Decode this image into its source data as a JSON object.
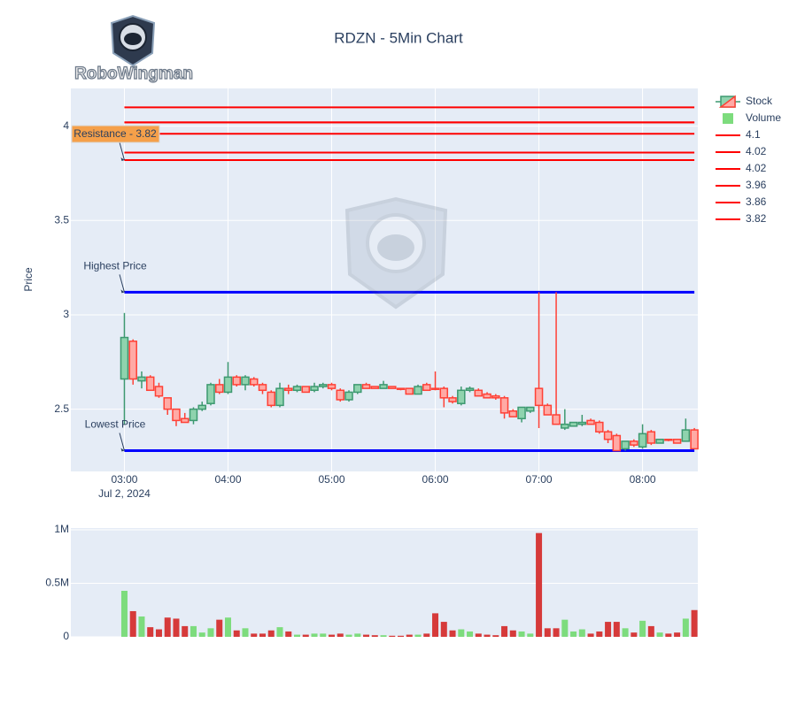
{
  "logo": {
    "text": "RoboWingman"
  },
  "chart_data": [
    {
      "type": "candlestick",
      "name": "Stock",
      "title": "RDZN - 5Min Chart",
      "y_label": "Price",
      "x_date_label": "Jul 2, 2024",
      "x": [
        "2024-07-02 03:00",
        "2024-07-02 03:05",
        "2024-07-02 03:10",
        "2024-07-02 03:15",
        "2024-07-02 03:20",
        "2024-07-02 03:25",
        "2024-07-02 03:30",
        "2024-07-02 03:35",
        "2024-07-02 03:40",
        "2024-07-02 03:45",
        "2024-07-02 03:50",
        "2024-07-02 03:55",
        "2024-07-02 04:00",
        "2024-07-02 04:05",
        "2024-07-02 04:10",
        "2024-07-02 04:15",
        "2024-07-02 04:20",
        "2024-07-02 04:25",
        "2024-07-02 04:30",
        "2024-07-02 04:35",
        "2024-07-02 04:40",
        "2024-07-02 04:45",
        "2024-07-02 04:50",
        "2024-07-02 04:55",
        "2024-07-02 05:00",
        "2024-07-02 05:05",
        "2024-07-02 05:10",
        "2024-07-02 05:15",
        "2024-07-02 05:20",
        "2024-07-02 05:25",
        "2024-07-02 05:30",
        "2024-07-02 05:35",
        "2024-07-02 05:40",
        "2024-07-02 05:45",
        "2024-07-02 05:50",
        "2024-07-02 05:55",
        "2024-07-02 06:00",
        "2024-07-02 06:05",
        "2024-07-02 06:10",
        "2024-07-02 06:15",
        "2024-07-02 06:20",
        "2024-07-02 06:25",
        "2024-07-02 06:30",
        "2024-07-02 06:35",
        "2024-07-02 06:40",
        "2024-07-02 06:45",
        "2024-07-02 06:50",
        "2024-07-02 06:55",
        "2024-07-02 07:00",
        "2024-07-02 07:05",
        "2024-07-02 07:10",
        "2024-07-02 07:15",
        "2024-07-02 07:20",
        "2024-07-02 07:25",
        "2024-07-02 07:30",
        "2024-07-02 07:35",
        "2024-07-02 07:40",
        "2024-07-02 07:45",
        "2024-07-02 07:50",
        "2024-07-02 07:55",
        "2024-07-02 08:00",
        "2024-07-02 08:05",
        "2024-07-02 08:10",
        "2024-07-02 08:15",
        "2024-07-02 08:20",
        "2024-07-02 08:25",
        "2024-07-02 08:30"
      ],
      "open": [
        2.66,
        2.86,
        2.65,
        2.67,
        2.62,
        2.56,
        2.5,
        2.45,
        2.44,
        2.5,
        2.53,
        2.63,
        2.59,
        2.67,
        2.63,
        2.66,
        2.63,
        2.59,
        2.52,
        2.61,
        2.6,
        2.62,
        2.6,
        2.62,
        2.63,
        2.6,
        2.55,
        2.59,
        2.63,
        2.62,
        2.61,
        2.62,
        2.61,
        2.61,
        2.58,
        2.63,
        2.61,
        2.61,
        2.56,
        2.53,
        2.6,
        2.6,
        2.58,
        2.57,
        2.56,
        2.49,
        2.45,
        2.49,
        2.61,
        2.52,
        2.47,
        2.4,
        2.41,
        2.42,
        2.44,
        2.43,
        2.38,
        2.36,
        2.29,
        2.33,
        2.3,
        2.38,
        2.32,
        2.34,
        2.34,
        2.33,
        2.39
      ],
      "high": [
        3.01,
        2.87,
        2.7,
        2.68,
        2.64,
        2.56,
        2.5,
        2.48,
        2.51,
        2.54,
        2.64,
        2.66,
        2.75,
        2.68,
        2.68,
        2.67,
        2.64,
        2.6,
        2.64,
        2.63,
        2.63,
        2.62,
        2.64,
        2.64,
        2.64,
        2.61,
        2.6,
        2.63,
        2.64,
        2.62,
        2.65,
        2.62,
        2.61,
        2.61,
        2.63,
        2.64,
        2.7,
        2.62,
        2.57,
        2.62,
        2.62,
        2.61,
        2.59,
        2.58,
        2.57,
        2.5,
        2.51,
        2.51,
        3.12,
        2.53,
        3.12,
        2.5,
        2.43,
        2.47,
        2.45,
        2.44,
        2.39,
        2.37,
        2.33,
        2.34,
        2.42,
        2.39,
        2.34,
        2.34,
        2.34,
        2.45,
        2.4
      ],
      "low": [
        2.42,
        2.63,
        2.61,
        2.6,
        2.56,
        2.47,
        2.41,
        2.43,
        2.42,
        2.49,
        2.52,
        2.58,
        2.58,
        2.62,
        2.6,
        2.62,
        2.58,
        2.51,
        2.51,
        2.58,
        2.59,
        2.59,
        2.59,
        2.61,
        2.6,
        2.54,
        2.54,
        2.58,
        2.61,
        2.61,
        2.61,
        2.61,
        2.6,
        2.58,
        2.58,
        2.6,
        2.6,
        2.51,
        2.53,
        2.52,
        2.59,
        2.57,
        2.56,
        2.55,
        2.45,
        2.46,
        2.43,
        2.48,
        2.4,
        2.47,
        2.42,
        2.39,
        2.41,
        2.41,
        2.42,
        2.37,
        2.32,
        2.28,
        2.28,
        2.3,
        2.29,
        2.31,
        2.32,
        2.33,
        2.32,
        2.33,
        2.29
      ],
      "close": [
        2.88,
        2.66,
        2.67,
        2.6,
        2.57,
        2.5,
        2.44,
        2.43,
        2.5,
        2.52,
        2.63,
        2.59,
        2.67,
        2.63,
        2.67,
        2.63,
        2.6,
        2.52,
        2.61,
        2.6,
        2.62,
        2.59,
        2.62,
        2.63,
        2.61,
        2.55,
        2.59,
        2.63,
        2.61,
        2.61,
        2.63,
        2.61,
        2.605,
        2.58,
        2.62,
        2.6,
        2.605,
        2.56,
        2.54,
        2.6,
        2.61,
        2.57,
        2.56,
        2.56,
        2.48,
        2.46,
        2.51,
        2.51,
        2.52,
        2.47,
        2.42,
        2.42,
        2.43,
        2.43,
        2.42,
        2.38,
        2.34,
        2.28,
        2.33,
        2.31,
        2.37,
        2.32,
        2.34,
        2.335,
        2.32,
        2.39,
        2.29
      ],
      "increasing_color": "#3d9970",
      "increasing_fill": "#8fd3ae",
      "decreasing_color": "#ff4136",
      "decreasing_fill": "#ffaaa5",
      "xlim": [
        "2024-07-02 02:29",
        "2024-07-02 08:32"
      ],
      "xticks": [
        {
          "value": "2024-07-02 03:00",
          "label": "03:00"
        },
        {
          "value": "2024-07-02 04:00",
          "label": "04:00"
        },
        {
          "value": "2024-07-02 05:00",
          "label": "05:00"
        },
        {
          "value": "2024-07-02 06:00",
          "label": "06:00"
        },
        {
          "value": "2024-07-02 07:00",
          "label": "07:00"
        },
        {
          "value": "2024-07-02 08:00",
          "label": "08:00"
        }
      ],
      "ylim": [
        2.17,
        4.2
      ],
      "yticks": [
        2.5,
        3,
        3.5,
        4
      ],
      "grid": true,
      "lines": [
        {
          "name": "4.1",
          "value": 4.1,
          "color": "#ff0000"
        },
        {
          "name": "4.02",
          "value": 4.02,
          "color": "#ff0000"
        },
        {
          "name": "4.02",
          "value": 4.02,
          "color": "#ff0000"
        },
        {
          "name": "3.96",
          "value": 3.96,
          "color": "#ff0000"
        },
        {
          "name": "3.86",
          "value": 3.86,
          "color": "#ff0000"
        },
        {
          "name": "3.82",
          "value": 3.82,
          "color": "#ff0000"
        },
        {
          "value": 3.12,
          "color": "#0000ff"
        },
        {
          "value": 2.28,
          "color": "#0000ff"
        }
      ],
      "annotations": [
        {
          "text": "Resistance - 3.82",
          "y": 3.82,
          "bgcolor": "#f5a04a"
        },
        {
          "text": "Highest Price",
          "y": 3.12
        },
        {
          "text": "Lowest Price",
          "y": 2.28
        }
      ]
    },
    {
      "type": "bar",
      "name": "Volume",
      "x": [
        "2024-07-02 03:00",
        "2024-07-02 03:05",
        "2024-07-02 03:10",
        "2024-07-02 03:15",
        "2024-07-02 03:20",
        "2024-07-02 03:25",
        "2024-07-02 03:30",
        "2024-07-02 03:35",
        "2024-07-02 03:40",
        "2024-07-02 03:45",
        "2024-07-02 03:50",
        "2024-07-02 03:55",
        "2024-07-02 04:00",
        "2024-07-02 04:05",
        "2024-07-02 04:10",
        "2024-07-02 04:15",
        "2024-07-02 04:20",
        "2024-07-02 04:25",
        "2024-07-02 04:30",
        "2024-07-02 04:35",
        "2024-07-02 04:40",
        "2024-07-02 04:45",
        "2024-07-02 04:50",
        "2024-07-02 04:55",
        "2024-07-02 05:00",
        "2024-07-02 05:05",
        "2024-07-02 05:10",
        "2024-07-02 05:15",
        "2024-07-02 05:20",
        "2024-07-02 05:25",
        "2024-07-02 05:30",
        "2024-07-02 05:35",
        "2024-07-02 05:40",
        "2024-07-02 05:45",
        "2024-07-02 05:50",
        "2024-07-02 05:55",
        "2024-07-02 06:00",
        "2024-07-02 06:05",
        "2024-07-02 06:10",
        "2024-07-02 06:15",
        "2024-07-02 06:20",
        "2024-07-02 06:25",
        "2024-07-02 06:30",
        "2024-07-02 06:35",
        "2024-07-02 06:40",
        "2024-07-02 06:45",
        "2024-07-02 06:50",
        "2024-07-02 06:55",
        "2024-07-02 07:00",
        "2024-07-02 07:05",
        "2024-07-02 07:10",
        "2024-07-02 07:15",
        "2024-07-02 07:20",
        "2024-07-02 07:25",
        "2024-07-02 07:30",
        "2024-07-02 07:35",
        "2024-07-02 07:40",
        "2024-07-02 07:45",
        "2024-07-02 07:50",
        "2024-07-02 07:55",
        "2024-07-02 08:00",
        "2024-07-02 08:05",
        "2024-07-02 08:10",
        "2024-07-02 08:15",
        "2024-07-02 08:20",
        "2024-07-02 08:25",
        "2024-07-02 08:30"
      ],
      "values": [
        430000,
        240000,
        190000,
        90000,
        70000,
        180000,
        170000,
        100000,
        100000,
        40000,
        80000,
        160000,
        180000,
        60000,
        80000,
        30000,
        30000,
        60000,
        90000,
        50000,
        20000,
        20000,
        30000,
        30000,
        20000,
        30000,
        20000,
        30000,
        20000,
        15000,
        15000,
        10000,
        10000,
        20000,
        20000,
        30000,
        220000,
        140000,
        60000,
        70000,
        50000,
        30000,
        20000,
        15000,
        100000,
        60000,
        50000,
        30000,
        970000,
        80000,
        80000,
        160000,
        50000,
        70000,
        30000,
        50000,
        140000,
        140000,
        80000,
        40000,
        150000,
        100000,
        40000,
        30000,
        40000,
        170000,
        250000
      ],
      "increasing_color": "#7ddc7d",
      "decreasing_color": "#d63a3a",
      "ylim": [
        0,
        1017000
      ],
      "yticks": [
        0,
        {
          "value": 500000,
          "label": "0.5M"
        },
        {
          "value": 1000000,
          "label": "1M"
        }
      ],
      "grid": true
    }
  ]
}
